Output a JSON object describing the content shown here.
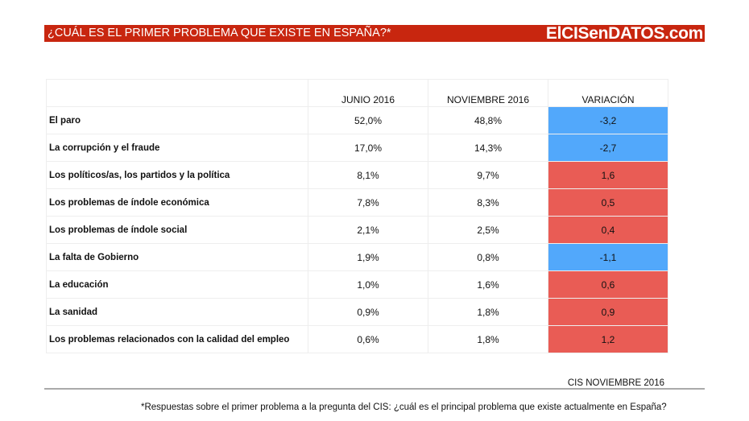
{
  "header": {
    "title": "¿CUÁL ES EL PRIMER PROBLEMA QUE EXISTE EN ESPAÑA?*",
    "brand": "ElCISenDATOS.com",
    "color": "#c8260f"
  },
  "chart_data": {
    "type": "table",
    "columns": [
      "",
      "JUNIO 2016",
      "NOVIEMBRE 2016",
      "VARIACIÓN"
    ],
    "rows": [
      {
        "label": "El paro",
        "junio": "52,0%",
        "noviembre": "48,8%",
        "variacion": "-3,2"
      },
      {
        "label": "La corrupción y el fraude",
        "junio": "17,0%",
        "noviembre": "14,3%",
        "variacion": "-2,7"
      },
      {
        "label": "Los políticos/as, los partidos y la política",
        "junio": "8,1%",
        "noviembre": "9,7%",
        "variacion": "1,6"
      },
      {
        "label": "Los problemas de índole económica",
        "junio": "7,8%",
        "noviembre": "8,3%",
        "variacion": "0,5"
      },
      {
        "label": "Los problemas de índole social",
        "junio": "2,1%",
        "noviembre": "2,5%",
        "variacion": "0,4"
      },
      {
        "label": "La falta de Gobierno",
        "junio": "1,9%",
        "noviembre": "0,8%",
        "variacion": "-1,1"
      },
      {
        "label": "La educación",
        "junio": "1,0%",
        "noviembre": "1,6%",
        "variacion": "0,6"
      },
      {
        "label": "La sanidad",
        "junio": "0,9%",
        "noviembre": "1,8%",
        "variacion": "0,9"
      },
      {
        "label": "Los problemas relacionados con la calidad del empleo",
        "junio": "0,6%",
        "noviembre": "1,8%",
        "variacion": "1,2"
      }
    ],
    "colors": {
      "negative": "#52a8fb",
      "positive": "#e95c55"
    }
  },
  "source": "CIS NOVIEMBRE 2016",
  "footnote": "*Respuestas sobre el primer problema a la pregunta del CIS: ¿cuál es el principal problema que existe actualmente en España?"
}
